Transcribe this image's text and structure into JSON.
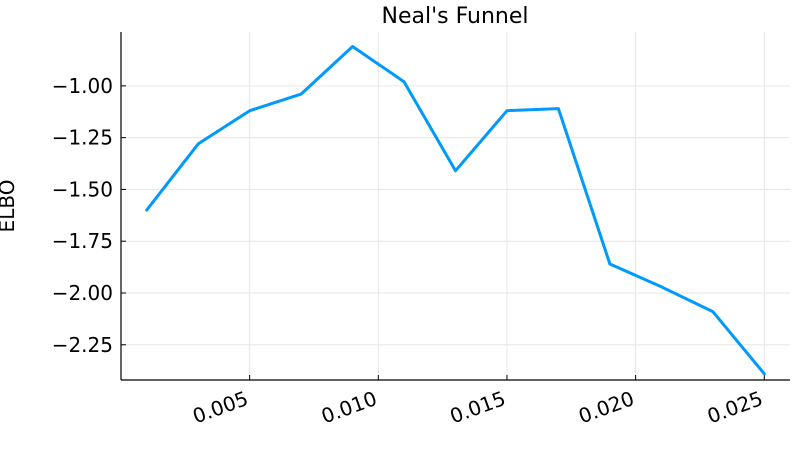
{
  "chart_data": {
    "type": "line",
    "title": "Neal's Funnel",
    "xlabel": "",
    "ylabel": "ELBO",
    "xlim": [
      0.0,
      0.026
    ],
    "ylim": [
      -2.42,
      -0.74
    ],
    "xticks": [
      0.005,
      0.01,
      0.015,
      0.02,
      0.025
    ],
    "xtick_labels": [
      "0.005",
      "0.010",
      "0.015",
      "0.020",
      "0.025"
    ],
    "yticks": [
      -1.0,
      -1.25,
      -1.5,
      -1.75,
      -2.0,
      -2.25
    ],
    "ytick_labels": [
      "−1.00",
      "−1.25",
      "−1.50",
      "−1.75",
      "−2.00",
      "−2.25"
    ],
    "grid": true,
    "legend": "none",
    "series": [
      {
        "color": "#009AFA",
        "x": [
          0.001,
          0.003,
          0.005,
          0.007,
          0.009,
          0.011,
          0.013,
          0.015,
          0.017,
          0.019,
          0.021,
          0.023,
          0.025
        ],
        "y": [
          -1.6,
          -1.28,
          -1.12,
          -1.04,
          -0.81,
          -0.98,
          -1.41,
          -1.12,
          -1.11,
          -1.86,
          -1.97,
          -2.09,
          -2.39
        ]
      }
    ]
  }
}
